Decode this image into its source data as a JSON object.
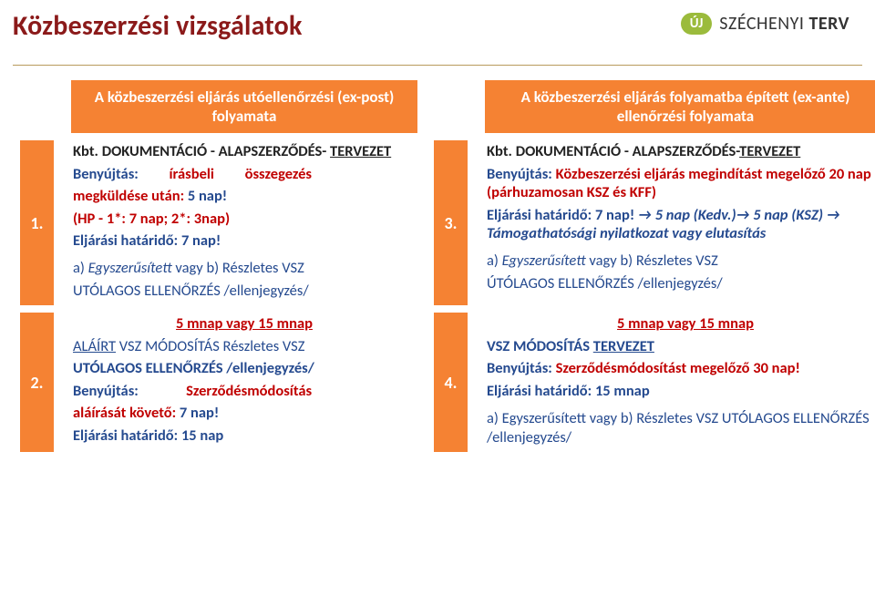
{
  "page_title": "Közbeszerzési vizsgálatok",
  "logo": {
    "badge": "ÚJ",
    "text_thin": "SZÉCHENYI",
    "text_bold": "TERV"
  },
  "colors": {
    "title": "#8b1a1a",
    "orange": "#f58233",
    "blue": "#254a8f",
    "red": "#c00000",
    "divider": "#b89a5c",
    "logo_badge": "#9bbb3c"
  },
  "headers": {
    "left": "A közbeszerzési eljárás utóellenőrzési (ex-post) folyamata",
    "right": "A közbeszerzési eljárás folyamatba épített  (ex-ante) ellenőrzési folyamata"
  },
  "row_numbers": {
    "r1l": "1.",
    "r1r": "3.",
    "r2l": "2.",
    "r2r": "4."
  },
  "r1_left": {
    "l1a": "Kbt.",
    "l1b": "DOKUMENTÁCIÓ - ALAPSZERZŐDÉS-",
    "l2": "TERVEZET",
    "l3a": "Benyújtás:",
    "l3b": "írásbeli",
    "l3c": "összegezés",
    "l4a": "megküldése után:",
    "l4b": "5 nap!",
    "l5a": "(HP - 1*: 7 nap; 2*: 3nap)",
    "l6": "Eljárási határidő: 7 nap!",
    "l7a": "a)",
    "l7b": "Egyszerűsített",
    "l7c": " vagy b) Részletes VSZ",
    "l8": "UTÓLAGOS ELLENŐRZÉS /ellenjegyzés/"
  },
  "r1_right": {
    "l1a": "Kbt.",
    "l1b": "DOKUMENTÁCIÓ - ALAPSZERZŐDÉS-",
    "l1c": "TERVEZET",
    "l2a": "Benyújtás:",
    "l2b": "Közbeszerzési eljárás megindítást megelőző 20 nap (párhuzamosan KSZ és KFF)",
    "l3a": "Eljárási határidő: 7 nap!",
    "arrow1": "→",
    "l3b": "5 nap (Kedv.)",
    "arrow2": "→",
    "l3c": "5 nap (KSZ)",
    "arrow3": "→",
    "l3d": "Támogathatósági nyilatkozat vagy elutasítás",
    "l4a": "a)",
    "l4b": "Egyszerűsített",
    "l4c": " vagy b) Részletes VSZ",
    "l5": "ÚTÓLAGOS ELLENŐRZÉS /ellenjegyzés/"
  },
  "r2_left": {
    "l0": "5 mnap vagy 15 mnap",
    "l1a": "ALÁÍRT",
    "l1b": " VSZ MÓDOSÍTÁS  Részletes VSZ",
    "l2": "UTÓLAGOS ELLENŐRZÉS /ellenjegyzés/",
    "l3a": "Benyújtás:",
    "l3b": "Szerződésmódosítás",
    "l4a": "aláírását követő:",
    "l4b": "7 nap!",
    "l5": "Eljárási határidő: 15 nap"
  },
  "r2_right": {
    "l0": "5 mnap vagy 15 mnap",
    "l1a": "VSZ MÓDOSÍTÁS ",
    "l1b": "TERVEZET",
    "l2a": "Benyújtás:",
    "l2b": "Szerződésmódosítást megelőző 30 nap!",
    "l3": "Eljárási határidő: 15 mnap",
    "l4": "a) Egyszerűsített  vagy b) Részletes VSZ UTÓLAGOS ELLENŐRZÉS /ellenjegyzés/"
  }
}
